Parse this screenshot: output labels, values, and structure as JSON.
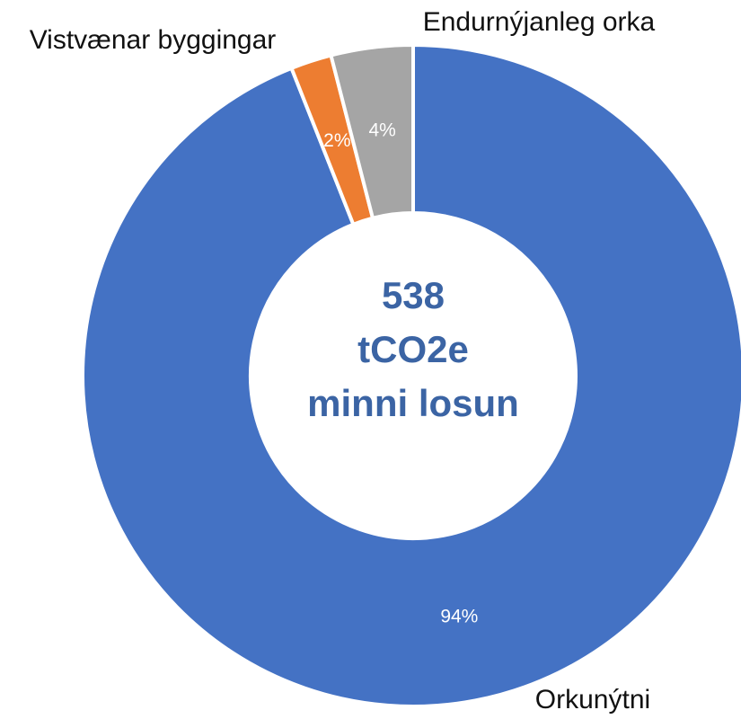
{
  "chart_data": {
    "type": "donut",
    "categories": [
      "Orkunýtni",
      "Vistvænar byggingar",
      "Endurnýjanleg orka"
    ],
    "values": [
      94,
      2,
      4
    ],
    "value_labels": [
      "94%",
      "2%",
      "4%"
    ],
    "colors": [
      "#4472c4",
      "#ed7d31",
      "#a5a5a5"
    ],
    "center_text": [
      "538",
      "tCO2e",
      "minni losun"
    ]
  }
}
